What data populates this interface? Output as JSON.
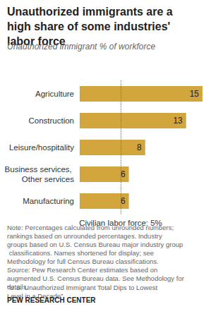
{
  "chart_data": {
    "type": "bar",
    "orientation": "horizontal",
    "title": "Unauthorized immigrants are a high share of some industries' labor force",
    "subtitle": "Unauthorized immigrant % of workforce",
    "categories": [
      "Agriculture",
      "Construction",
      "Leisure/hospitality",
      "Business services, Other services",
      "Manufacturing"
    ],
    "values": [
      15,
      13,
      8,
      6,
      6
    ],
    "color": "#d2a63c",
    "xlim": [
      0,
      15
    ],
    "data_labels": true,
    "tick_labels": "y",
    "grid": false,
    "reference_line": {
      "value": 5,
      "label": "Civilian labor force: 5%"
    },
    "note": "Note: Percentages calculated from unrounded numbers; rankings based on unrounded percentages. Industry groups based on U.S. Census Bureau major industry group classifications. Names shortened for display; see Methodology for full Census Bureau classifications.",
    "source": "Source: Pew Research Center estimates based on augmented U.S. Census Bureau data. See Methodology for details.",
    "report": "“U.S. Unauthorized Immigrant Total Dips to Lowest Level in a Decade”",
    "credit": "PEW RESEARCH CENTER"
  }
}
